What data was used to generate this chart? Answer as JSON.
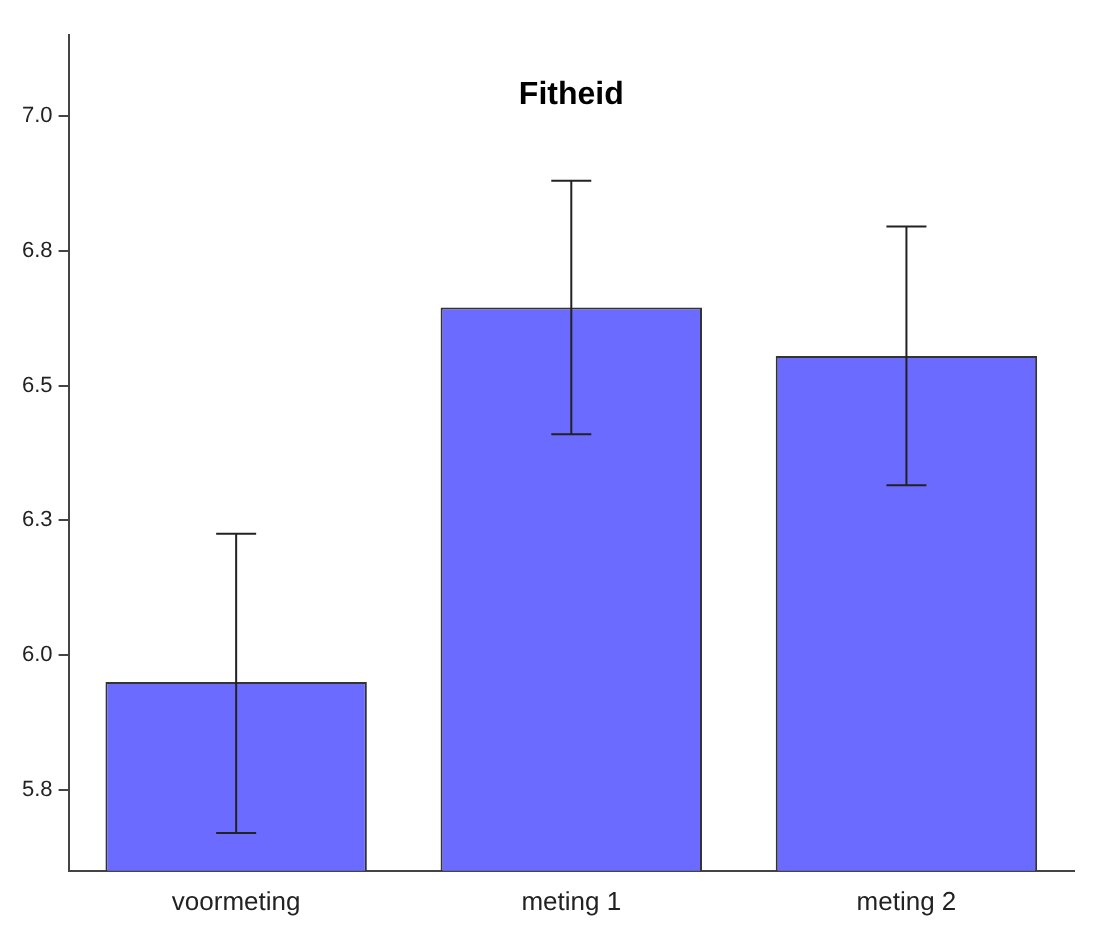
{
  "chart_data": {
    "type": "bar",
    "title": "Fitheid",
    "categories": [
      "voormeting",
      "meting 1",
      "meting 2"
    ],
    "values": [
      5.95,
      6.645,
      6.555
    ],
    "errors": [
      [
        5.67,
        6.225
      ],
      [
        6.41,
        6.88
      ],
      [
        6.315,
        6.795
      ]
    ],
    "color": "#6b6bff",
    "ylim": [
      5.6,
      7.15
    ],
    "yticks": [
      {
        "value": 5.75,
        "label": "5.8"
      },
      {
        "value": 6.0,
        "label": "6.0"
      },
      {
        "value": 6.25,
        "label": "6.3"
      },
      6.5,
      {
        "value": 6.75,
        "label": "6.8"
      },
      {
        "value": 7.0,
        "label": "7.0"
      }
    ],
    "grid": false,
    "legend": false
  }
}
